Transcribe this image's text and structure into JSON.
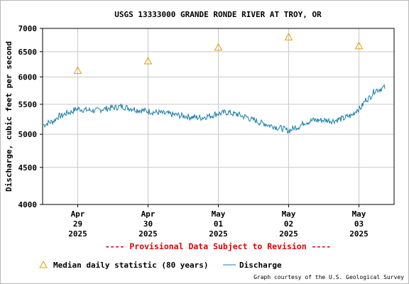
{
  "chart_data": {
    "type": "line",
    "title": "USGS 13333000 GRANDE RONDE RIVER AT TROY, OR",
    "ylabel": "Discharge, cubic feet per second",
    "y_scale": "log",
    "ylim": [
      4000,
      7000
    ],
    "y_ticks": [
      4000,
      4500,
      5000,
      5500,
      6000,
      6500,
      7000
    ],
    "y_tick_labels": [
      "4000",
      "4500",
      "5000",
      "5500",
      "6000",
      "6500",
      "7000"
    ],
    "xlim": [
      "2025-04-28T12:00",
      "2025-05-03T12:00"
    ],
    "x_ticks": [
      {
        "at": "2025-04-29",
        "label": [
          "Apr",
          "29",
          "2025"
        ]
      },
      {
        "at": "2025-04-30",
        "label": [
          "Apr",
          "30",
          "2025"
        ]
      },
      {
        "at": "2025-05-01",
        "label": [
          "May",
          "01",
          "2025"
        ]
      },
      {
        "at": "2025-05-02",
        "label": [
          "May",
          "02",
          "2025"
        ]
      },
      {
        "at": "2025-05-03",
        "label": [
          "May",
          "03",
          "2025"
        ]
      }
    ],
    "grid": true,
    "series": [
      {
        "name": "Median daily statistic (80 years)",
        "kind": "markers",
        "marker": "triangle",
        "color": "#e0a000",
        "x": [
          "2025-04-29",
          "2025-04-30",
          "2025-05-01",
          "2025-05-02",
          "2025-05-03"
        ],
        "values": [
          6120,
          6310,
          6590,
          6810,
          6620
        ]
      },
      {
        "name": "Discharge",
        "kind": "line",
        "color": "#1a7fa8",
        "x": [
          "2025-04-28T12:00",
          "2025-04-28T15:00",
          "2025-04-28T18:00",
          "2025-04-28T21:00",
          "2025-04-29T00:00",
          "2025-04-29T03:00",
          "2025-04-29T06:00",
          "2025-04-29T09:00",
          "2025-04-29T12:00",
          "2025-04-29T15:00",
          "2025-04-29T18:00",
          "2025-04-29T21:00",
          "2025-04-30T00:00",
          "2025-04-30T03:00",
          "2025-04-30T06:00",
          "2025-04-30T09:00",
          "2025-04-30T12:00",
          "2025-04-30T15:00",
          "2025-04-30T18:00",
          "2025-04-30T21:00",
          "2025-05-01T00:00",
          "2025-05-01T03:00",
          "2025-05-01T06:00",
          "2025-05-01T09:00",
          "2025-05-01T12:00",
          "2025-05-01T15:00",
          "2025-05-01T18:00",
          "2025-05-01T21:00",
          "2025-05-02T00:00",
          "2025-05-02T03:00",
          "2025-05-02T06:00",
          "2025-05-02T09:00",
          "2025-05-02T12:00",
          "2025-05-02T15:00",
          "2025-05-02T18:00",
          "2025-05-02T21:00",
          "2025-05-03T00:00",
          "2025-05-03T03:00",
          "2025-05-03T06:00",
          "2025-05-03T09:00"
        ],
        "values": [
          5150,
          5200,
          5300,
          5360,
          5420,
          5400,
          5390,
          5420,
          5440,
          5460,
          5430,
          5400,
          5380,
          5360,
          5340,
          5320,
          5300,
          5280,
          5270,
          5300,
          5340,
          5360,
          5330,
          5290,
          5230,
          5180,
          5140,
          5100,
          5060,
          5120,
          5200,
          5230,
          5230,
          5220,
          5250,
          5300,
          5420,
          5600,
          5760,
          5800
        ]
      }
    ],
    "annotation": "---- Provisional Data Subject to Revision ----",
    "credit": "Graph courtesy of the U.S. Geological Survey",
    "legend_placement": "bottom"
  }
}
